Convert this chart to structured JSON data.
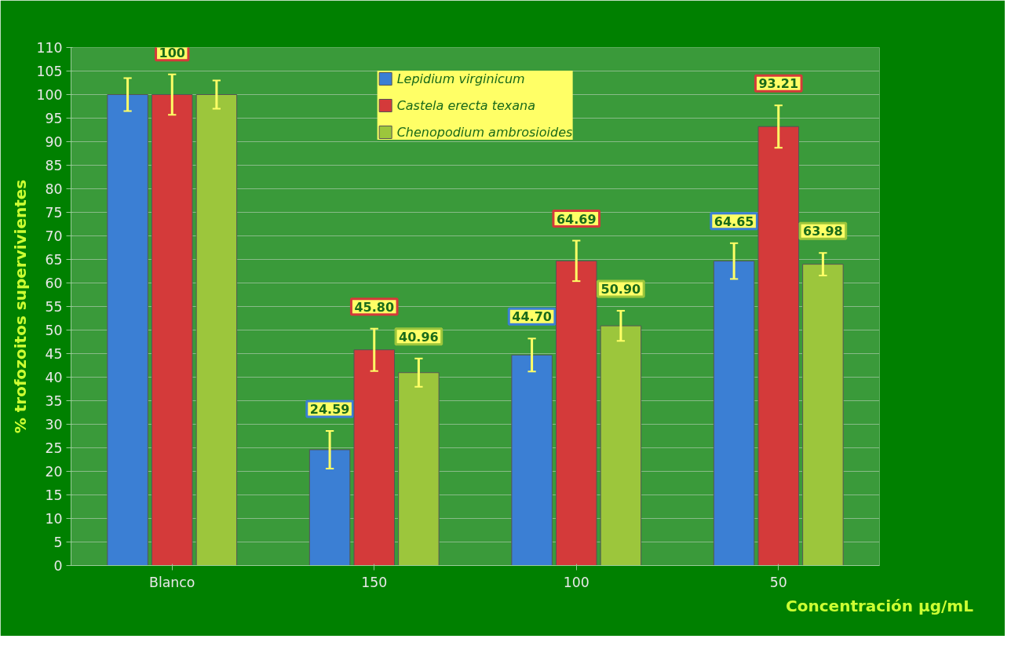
{
  "chart_data": {
    "type": "bar",
    "xlabel": "Concentración μg/mL",
    "ylabel": "% trofozoitos supervivientes",
    "categories": [
      "Blanco",
      "150",
      "100",
      "50"
    ],
    "series": [
      {
        "name": "Lepidium virginicum",
        "color": "#3b7fd4",
        "values": [
          100,
          24.59,
          44.7,
          64.65
        ],
        "errors": [
          3.5,
          4,
          3.5,
          3.8
        ],
        "value_labels": [
          null,
          "24.59",
          "44.70",
          "64.65"
        ]
      },
      {
        "name": "Castela erecta texana",
        "color": "#d43a3a",
        "values": [
          100,
          45.8,
          64.69,
          93.21
        ],
        "errors": [
          4.3,
          4.5,
          4.3,
          4.5
        ],
        "value_labels": [
          "100",
          "45.80",
          "64.69",
          "93.21"
        ]
      },
      {
        "name": "Chenopodium ambrosioides",
        "color": "#9cc63c",
        "values": [
          100,
          40.96,
          50.9,
          63.98
        ],
        "errors": [
          3,
          3,
          3.2,
          2.4
        ],
        "value_labels": [
          null,
          "40.96",
          "50.90",
          "63.98"
        ]
      }
    ],
    "ylim": [
      0,
      110
    ],
    "yticks": [
      0,
      5,
      10,
      15,
      20,
      25,
      30,
      35,
      40,
      45,
      50,
      55,
      60,
      65,
      70,
      75,
      80,
      85,
      90,
      95,
      100,
      105,
      110
    ],
    "grid": "y",
    "legend": "top"
  }
}
